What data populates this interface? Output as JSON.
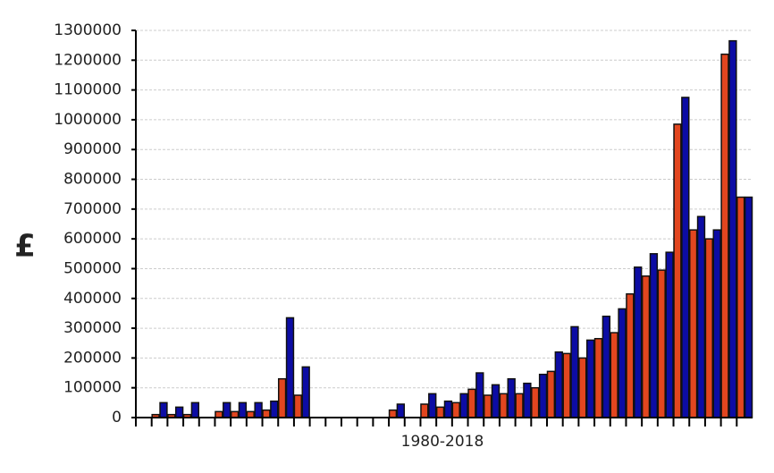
{
  "chart_data": {
    "type": "bar",
    "x_label": "1980-2018",
    "y_label": "£",
    "categories": [
      null,
      null,
      null,
      null,
      null,
      null,
      null,
      null,
      null,
      null,
      null,
      null,
      null,
      null,
      null,
      null,
      null,
      null,
      null,
      null,
      null,
      null,
      null,
      null,
      null,
      null,
      null,
      null,
      null,
      null,
      null,
      null,
      null,
      null,
      null,
      null,
      null,
      null,
      null
    ],
    "series": [
      {
        "color": "#e2461f",
        "values": [
          0,
          10000,
          10000,
          10000,
          0,
          20000,
          20000,
          20000,
          25000,
          130000,
          75000,
          0,
          0,
          0,
          0,
          0,
          25000,
          0,
          45000,
          35000,
          50000,
          95000,
          75000,
          80000,
          80000,
          100000,
          155000,
          215000,
          200000,
          265000,
          285000,
          415000,
          475000,
          495000,
          985000,
          630000,
          600000,
          1220000,
          740000
        ]
      },
      {
        "color": "#0c0ca4",
        "values": [
          0,
          50000,
          35000,
          50000,
          0,
          50000,
          50000,
          50000,
          55000,
          335000,
          170000,
          0,
          0,
          0,
          0,
          0,
          45000,
          0,
          80000,
          55000,
          80000,
          150000,
          110000,
          130000,
          115000,
          145000,
          220000,
          305000,
          260000,
          340000,
          365000,
          505000,
          550000,
          555000,
          1075000,
          675000,
          630000,
          1265000,
          740000
        ]
      }
    ],
    "ylim": [
      0,
      1300000
    ],
    "yticks": [
      0,
      100000,
      200000,
      300000,
      400000,
      500000,
      600000,
      700000,
      800000,
      900000,
      1000000,
      1100000,
      1200000,
      1300000
    ],
    "grid": true
  }
}
